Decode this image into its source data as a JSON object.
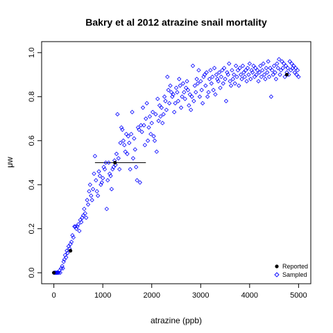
{
  "chart_data": {
    "type": "scatter",
    "title": "Bakry et al 2012 atrazine snail mortality",
    "xlabel": "atrazine (ppb)",
    "ylabel": "μw",
    "xlim": [
      -250,
      5250
    ],
    "ylim": [
      -0.05,
      1.05
    ],
    "xticks": [
      0,
      1000,
      2000,
      3000,
      4000,
      5000
    ],
    "xtick_labels": [
      "0",
      "1000",
      "2000",
      "3000",
      "4000",
      "5000"
    ],
    "yticks": [
      0.0,
      0.2,
      0.4,
      0.6,
      0.8,
      1.0
    ],
    "ytick_labels": [
      "0.0",
      "0.2",
      "0.4",
      "0.6",
      "0.8",
      "1.0"
    ],
    "grid": false,
    "legend_position": "bottom-right",
    "colors": {
      "reported": "#000000",
      "sampled": "#0000ff"
    },
    "series": [
      {
        "name": "Reported",
        "marker": "filled-circle",
        "points": [
          [
            0,
            0.0
          ],
          [
            340,
            0.1
          ],
          [
            1250,
            0.5
          ],
          [
            4760,
            0.9
          ]
        ]
      },
      {
        "name": "Sampled",
        "marker": "open-diamond",
        "points": [
          [
            5,
            0.0
          ],
          [
            12,
            0.0
          ],
          [
            25,
            0.0
          ],
          [
            38,
            0.0
          ],
          [
            50,
            0.0
          ],
          [
            65,
            0.0
          ],
          [
            80,
            0.0
          ],
          [
            100,
            0.0
          ],
          [
            115,
            0.01
          ],
          [
            130,
            0.0
          ],
          [
            150,
            0.02
          ],
          [
            170,
            0.03
          ],
          [
            185,
            0.02
          ],
          [
            200,
            0.05
          ],
          [
            215,
            0.06
          ],
          [
            230,
            0.08
          ],
          [
            250,
            0.07
          ],
          [
            265,
            0.1
          ],
          [
            280,
            0.09
          ],
          [
            300,
            0.12
          ],
          [
            320,
            0.11
          ],
          [
            340,
            0.13
          ],
          [
            360,
            0.14
          ],
          [
            380,
            0.17
          ],
          [
            400,
            0.16
          ],
          [
            420,
            0.21
          ],
          [
            440,
            0.21
          ],
          [
            460,
            0.2
          ],
          [
            480,
            0.21
          ],
          [
            500,
            0.22
          ],
          [
            520,
            0.19
          ],
          [
            540,
            0.24
          ],
          [
            560,
            0.23
          ],
          [
            580,
            0.25
          ],
          [
            600,
            0.26
          ],
          [
            620,
            0.29
          ],
          [
            640,
            0.27
          ],
          [
            660,
            0.25
          ],
          [
            680,
            0.33
          ],
          [
            700,
            0.31
          ],
          [
            720,
            0.37
          ],
          [
            740,
            0.4
          ],
          [
            760,
            0.35
          ],
          [
            780,
            0.33
          ],
          [
            800,
            0.38
          ],
          [
            820,
            0.45
          ],
          [
            840,
            0.53
          ],
          [
            860,
            0.42
          ],
          [
            880,
            0.37
          ],
          [
            900,
            0.35
          ],
          [
            920,
            0.46
          ],
          [
            940,
            0.44
          ],
          [
            960,
            0.4
          ],
          [
            980,
            0.41
          ],
          [
            1000,
            0.43
          ],
          [
            1020,
            0.48
          ],
          [
            1040,
            0.47
          ],
          [
            1060,
            0.5
          ],
          [
            1080,
            0.29
          ],
          [
            1100,
            0.42
          ],
          [
            1120,
            0.5
          ],
          [
            1140,
            0.45
          ],
          [
            1160,
            0.44
          ],
          [
            1180,
            0.38
          ],
          [
            1200,
            0.47
          ],
          [
            1220,
            0.48
          ],
          [
            1240,
            0.51
          ],
          [
            1260,
            0.49
          ],
          [
            1280,
            0.54
          ],
          [
            1300,
            0.72
          ],
          [
            1320,
            0.52
          ],
          [
            1340,
            0.47
          ],
          [
            1360,
            0.59
          ],
          [
            1380,
            0.66
          ],
          [
            1400,
            0.65
          ],
          [
            1420,
            0.6
          ],
          [
            1440,
            0.58
          ],
          [
            1460,
            0.55
          ],
          [
            1480,
            0.63
          ],
          [
            1500,
            0.54
          ],
          [
            1520,
            0.62
          ],
          [
            1540,
            0.59
          ],
          [
            1560,
            0.47
          ],
          [
            1580,
            0.63
          ],
          [
            1600,
            0.73
          ],
          [
            1620,
            0.52
          ],
          [
            1640,
            0.61
          ],
          [
            1660,
            0.56
          ],
          [
            1680,
            0.48
          ],
          [
            1700,
            0.42
          ],
          [
            1720,
            0.66
          ],
          [
            1740,
            0.65
          ],
          [
            1760,
            0.41
          ],
          [
            1780,
            0.67
          ],
          [
            1800,
            0.64
          ],
          [
            1820,
            0.75
          ],
          [
            1840,
            0.67
          ],
          [
            1860,
            0.58
          ],
          [
            1880,
            0.7
          ],
          [
            1900,
            0.77
          ],
          [
            1920,
            0.6
          ],
          [
            1940,
            0.66
          ],
          [
            1960,
            0.71
          ],
          [
            1980,
            0.63
          ],
          [
            2000,
            0.68
          ],
          [
            2020,
            0.73
          ],
          [
            2040,
            0.62
          ],
          [
            2060,
            0.6
          ],
          [
            2080,
            0.72
          ],
          [
            2100,
            0.55
          ],
          [
            2120,
            0.79
          ],
          [
            2140,
            0.69
          ],
          [
            2160,
            0.76
          ],
          [
            2180,
            0.71
          ],
          [
            2200,
            0.75
          ],
          [
            2220,
            0.68
          ],
          [
            2240,
            0.72
          ],
          [
            2260,
            0.8
          ],
          [
            2280,
            0.78
          ],
          [
            2300,
            0.74
          ],
          [
            2320,
            0.89
          ],
          [
            2340,
            0.83
          ],
          [
            2360,
            0.77
          ],
          [
            2380,
            0.85
          ],
          [
            2400,
            0.82
          ],
          [
            2420,
            0.8
          ],
          [
            2440,
            0.81
          ],
          [
            2460,
            0.73
          ],
          [
            2480,
            0.77
          ],
          [
            2500,
            0.84
          ],
          [
            2520,
            0.82
          ],
          [
            2540,
            0.78
          ],
          [
            2560,
            0.88
          ],
          [
            2580,
            0.85
          ],
          [
            2600,
            0.75
          ],
          [
            2620,
            0.8
          ],
          [
            2640,
            0.86
          ],
          [
            2660,
            0.82
          ],
          [
            2680,
            0.79
          ],
          [
            2700,
            0.84
          ],
          [
            2720,
            0.87
          ],
          [
            2740,
            0.83
          ],
          [
            2760,
            0.76
          ],
          [
            2780,
            0.81
          ],
          [
            2800,
            0.74
          ],
          [
            2820,
            0.8
          ],
          [
            2840,
            0.94
          ],
          [
            2860,
            0.78
          ],
          [
            2880,
            0.85
          ],
          [
            2900,
            0.82
          ],
          [
            2920,
            0.88
          ],
          [
            2940,
            0.86
          ],
          [
            2960,
            0.92
          ],
          [
            2980,
            0.8
          ],
          [
            3000,
            0.87
          ],
          [
            3020,
            0.83
          ],
          [
            3040,
            0.77
          ],
          [
            3060,
            0.89
          ],
          [
            3080,
            0.9
          ],
          [
            3100,
            0.85
          ],
          [
            3120,
            0.91
          ],
          [
            3140,
            0.8
          ],
          [
            3160,
            0.82
          ],
          [
            3180,
            0.88
          ],
          [
            3200,
            0.92
          ],
          [
            3220,
            0.86
          ],
          [
            3240,
            0.89
          ],
          [
            3260,
            0.83
          ],
          [
            3280,
            0.93
          ],
          [
            3300,
            0.81
          ],
          [
            3320,
            0.9
          ],
          [
            3340,
            0.88
          ],
          [
            3360,
            0.87
          ],
          [
            3380,
            0.91
          ],
          [
            3400,
            0.84
          ],
          [
            3420,
            0.89
          ],
          [
            3440,
            0.92
          ],
          [
            3460,
            0.86
          ],
          [
            3480,
            0.93
          ],
          [
            3500,
            0.88
          ],
          [
            3520,
            0.78
          ],
          [
            3540,
            0.91
          ],
          [
            3560,
            0.9
          ],
          [
            3580,
            0.95
          ],
          [
            3600,
            0.87
          ],
          [
            3620,
            0.85
          ],
          [
            3640,
            0.92
          ],
          [
            3660,
            0.88
          ],
          [
            3680,
            0.9
          ],
          [
            3700,
            0.86
          ],
          [
            3720,
            0.94
          ],
          [
            3740,
            0.89
          ],
          [
            3760,
            0.92
          ],
          [
            3780,
            0.85
          ],
          [
            3800,
            0.93
          ],
          [
            3820,
            0.9
          ],
          [
            3840,
            0.88
          ],
          [
            3860,
            0.94
          ],
          [
            3880,
            0.91
          ],
          [
            3900,
            0.89
          ],
          [
            3920,
            0.92
          ],
          [
            3940,
            0.87
          ],
          [
            3960,
            0.93
          ],
          [
            3980,
            0.9
          ],
          [
            4000,
            0.95
          ],
          [
            4020,
            0.88
          ],
          [
            4040,
            0.92
          ],
          [
            4060,
            0.91
          ],
          [
            4080,
            0.94
          ],
          [
            4100,
            0.89
          ],
          [
            4120,
            0.93
          ],
          [
            4140,
            0.9
          ],
          [
            4160,
            0.92
          ],
          [
            4180,
            0.87
          ],
          [
            4200,
            0.91
          ],
          [
            4220,
            0.94
          ],
          [
            4240,
            0.89
          ],
          [
            4260,
            0.92
          ],
          [
            4280,
            0.95
          ],
          [
            4300,
            0.9
          ],
          [
            4320,
            0.88
          ],
          [
            4340,
            0.93
          ],
          [
            4360,
            0.91
          ],
          [
            4380,
            0.96
          ],
          [
            4400,
            0.89
          ],
          [
            4420,
            0.93
          ],
          [
            4440,
            0.8
          ],
          [
            4460,
            0.92
          ],
          [
            4480,
            0.9
          ],
          [
            4500,
            0.94
          ],
          [
            4520,
            0.91
          ],
          [
            4540,
            0.88
          ],
          [
            4560,
            0.95
          ],
          [
            4580,
            0.93
          ],
          [
            4600,
            0.97
          ],
          [
            4620,
            0.9
          ],
          [
            4640,
            0.92
          ],
          [
            4660,
            0.96
          ],
          [
            4680,
            0.93
          ],
          [
            4700,
            0.95
          ],
          [
            4720,
            0.89
          ],
          [
            4740,
            0.94
          ],
          [
            4760,
            0.91
          ],
          [
            4780,
            0.93
          ],
          [
            4800,
            0.9
          ],
          [
            4820,
            0.96
          ],
          [
            4840,
            0.92
          ],
          [
            4860,
            0.95
          ],
          [
            4880,
            0.93
          ],
          [
            4900,
            0.94
          ],
          [
            4920,
            0.91
          ],
          [
            4940,
            0.93
          ],
          [
            4960,
            0.9
          ],
          [
            4980,
            0.92
          ],
          [
            5000,
            0.89
          ]
        ]
      }
    ],
    "annotations": [
      {
        "type": "hline",
        "y": 0.5,
        "x_from": 840,
        "x_to": 1880
      }
    ]
  }
}
